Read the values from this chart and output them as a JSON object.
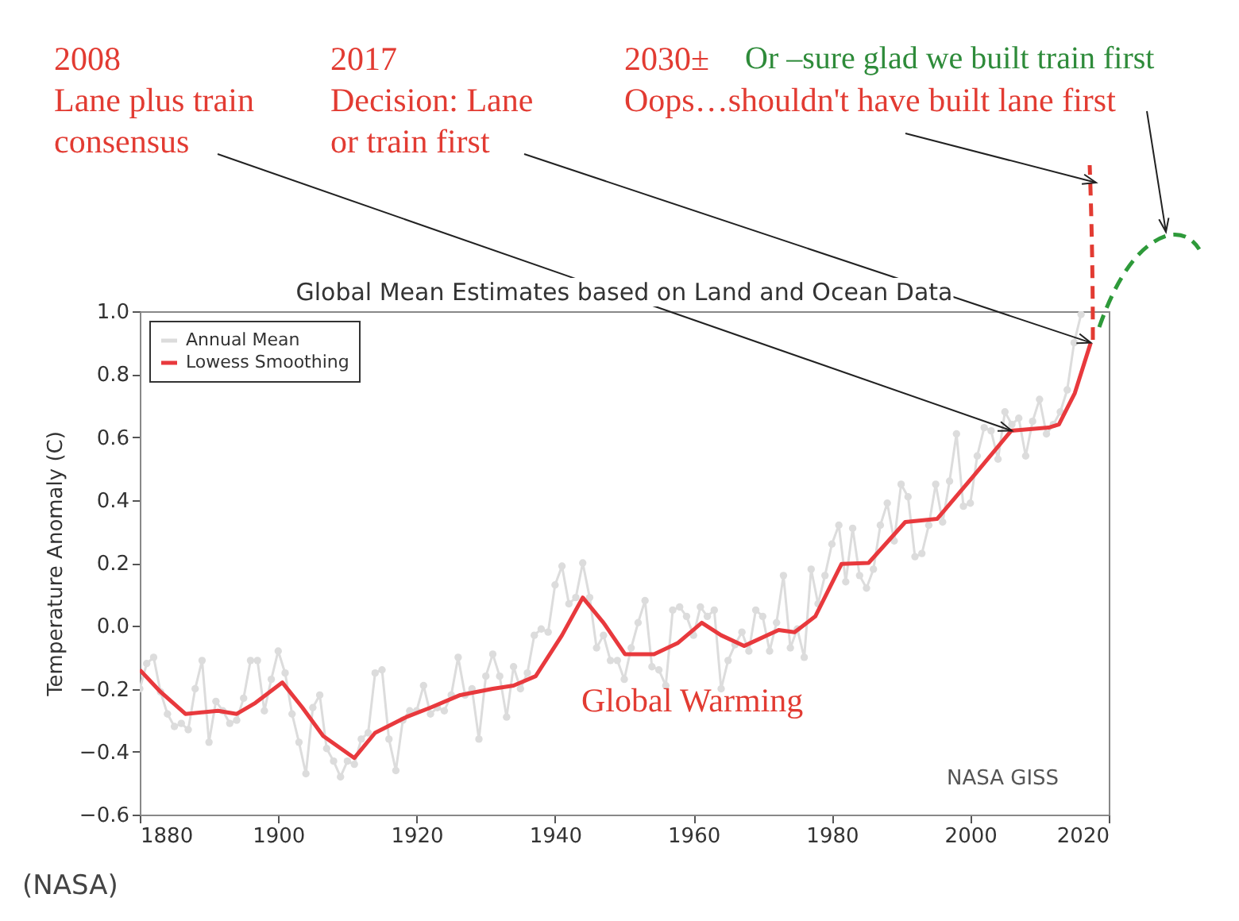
{
  "chart_data": {
    "type": "line",
    "title": "Global Mean Estimates based on Land and Ocean Data",
    "ylabel": "Temperature Anomaly (C)",
    "xlim": [
      1880,
      2020
    ],
    "xticks": [
      1880,
      1900,
      1920,
      1940,
      1960,
      1980,
      2000,
      2020
    ],
    "ylim": [
      -0.6,
      1.0
    ],
    "yticks": [
      {
        "value": -0.6,
        "label": "−0.6"
      },
      {
        "value": -0.4,
        "label": "−0.4"
      },
      {
        "value": -0.2,
        "label": "−0.2"
      },
      {
        "value": 0,
        "label": "0.0"
      },
      0.2,
      0.4,
      0.6,
      0.8,
      {
        "value": 1,
        "label": "1.0"
      }
    ],
    "grid": false,
    "legend": "top left",
    "series": [
      {
        "name": "Annual Mean",
        "color": "#dcdcdc",
        "marker": "circle",
        "x": [
          1880,
          1881,
          1882,
          1883,
          1884,
          1885,
          1886,
          1887,
          1888,
          1889,
          1890,
          1891,
          1892,
          1893,
          1894,
          1895,
          1896,
          1897,
          1898,
          1899,
          1900,
          1901,
          1902,
          1903,
          1904,
          1905,
          1906,
          1907,
          1908,
          1909,
          1910,
          1911,
          1912,
          1913,
          1914,
          1915,
          1916,
          1917,
          1918,
          1919,
          1920,
          1921,
          1922,
          1923,
          1924,
          1925,
          1926,
          1927,
          1928,
          1929,
          1930,
          1931,
          1932,
          1933,
          1934,
          1935,
          1936,
          1937,
          1938,
          1939,
          1940,
          1941,
          1942,
          1943,
          1944,
          1945,
          1946,
          1947,
          1948,
          1949,
          1950,
          1951,
          1952,
          1953,
          1954,
          1955,
          1956,
          1957,
          1958,
          1959,
          1960,
          1961,
          1962,
          1963,
          1964,
          1965,
          1966,
          1967,
          1968,
          1969,
          1970,
          1971,
          1972,
          1973,
          1974,
          1975,
          1976,
          1977,
          1978,
          1979,
          1980,
          1981,
          1982,
          1983,
          1984,
          1985,
          1986,
          1987,
          1988,
          1989,
          1990,
          1991,
          1992,
          1993,
          1994,
          1995,
          1996,
          1997,
          1998,
          1999,
          2000,
          2001,
          2002,
          2003,
          2004,
          2005,
          2006,
          2007,
          2008,
          2009,
          2010,
          2011,
          2012,
          2013,
          2014,
          2015,
          2016
        ],
        "values": [
          -0.2,
          -0.12,
          -0.1,
          -0.21,
          -0.28,
          -0.32,
          -0.31,
          -0.33,
          -0.2,
          -0.11,
          -0.37,
          -0.24,
          -0.27,
          -0.31,
          -0.3,
          -0.23,
          -0.11,
          -0.11,
          -0.27,
          -0.17,
          -0.08,
          -0.15,
          -0.28,
          -0.37,
          -0.47,
          -0.26,
          -0.22,
          -0.39,
          -0.43,
          -0.48,
          -0.43,
          -0.44,
          -0.36,
          -0.34,
          -0.15,
          -0.14,
          -0.36,
          -0.46,
          -0.3,
          -0.27,
          -0.27,
          -0.19,
          -0.28,
          -0.26,
          -0.27,
          -0.22,
          -0.1,
          -0.22,
          -0.2,
          -0.36,
          -0.16,
          -0.09,
          -0.16,
          -0.29,
          -0.13,
          -0.2,
          -0.15,
          -0.03,
          -0.01,
          -0.02,
          0.13,
          0.19,
          0.07,
          0.09,
          0.2,
          0.09,
          -0.07,
          -0.03,
          -0.11,
          -0.11,
          -0.17,
          -0.07,
          0.01,
          0.08,
          -0.13,
          -0.14,
          -0.19,
          0.05,
          0.06,
          0.03,
          -0.03,
          0.06,
          0.03,
          0.05,
          -0.2,
          -0.11,
          -0.06,
          -0.02,
          -0.08,
          0.05,
          0.03,
          -0.08,
          0.01,
          0.16,
          -0.07,
          -0.01,
          -0.1,
          0.18,
          0.07,
          0.16,
          0.26,
          0.32,
          0.14,
          0.31,
          0.16,
          0.12,
          0.18,
          0.32,
          0.39,
          0.27,
          0.45,
          0.41,
          0.22,
          0.23,
          0.32,
          0.45,
          0.33,
          0.46,
          0.61,
          0.38,
          0.39,
          0.54,
          0.63,
          0.62,
          0.53,
          0.68,
          0.64,
          0.66,
          0.54,
          0.65,
          0.72,
          0.61,
          0.64,
          0.68,
          0.75,
          0.9,
          0.99
        ]
      },
      {
        "name": "Lowess Smoothing",
        "color": "#e8393d",
        "marker": "none",
        "x": [
          1880,
          1883,
          1886.6,
          1891.3,
          1894,
          1896.7,
          1900.6,
          1903.5,
          1906.5,
          1911,
          1914,
          1918.5,
          1922,
          1926.3,
          1931,
          1934,
          1937.2,
          1941,
          1944,
          1947,
          1950.1,
          1954.3,
          1957.7,
          1961.2,
          1964,
          1967.3,
          1972.3,
          1974.6,
          1977.6,
          1981.4,
          1985.3,
          1990.6,
          1995.2,
          2000.6,
          2005.9,
          2011.3,
          2012.8,
          2015.1,
          2017.4
        ],
        "values": [
          -0.14,
          -0.21,
          -0.28,
          -0.27,
          -0.28,
          -0.245,
          -0.18,
          -0.26,
          -0.35,
          -0.42,
          -0.34,
          -0.29,
          -0.26,
          -0.22,
          -0.2,
          -0.19,
          -0.16,
          -0.03,
          0.09,
          0.01,
          -0.09,
          -0.09,
          -0.055,
          0.01,
          -0.03,
          -0.064,
          -0.013,
          -0.02,
          0.03,
          0.197,
          0.2,
          0.33,
          0.34,
          0.48,
          0.62,
          0.63,
          0.64,
          0.74,
          0.9
        ]
      }
    ],
    "annotations": [
      {
        "text": "2008\nLane plus train\nconsensus",
        "x": 2006,
        "y": 0.62
      },
      {
        "text": "2017\nDecision: Lane\nor train first",
        "x": 2017.4,
        "y": 0.9
      },
      "2030±\nOops…shouldn't have built lane first",
      "Or –sure glad we built train first",
      "Global Warming",
      "NASA GISS",
      "(NASA)"
    ]
  }
}
